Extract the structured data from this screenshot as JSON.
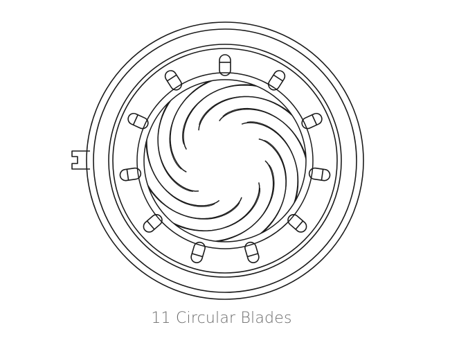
{
  "caption": "11 Circular Blades",
  "aperture": {
    "blade_count": 11,
    "line_color": "#1a1a1a",
    "background": "#ffffff",
    "caption_color": "#6a6a6a"
  }
}
